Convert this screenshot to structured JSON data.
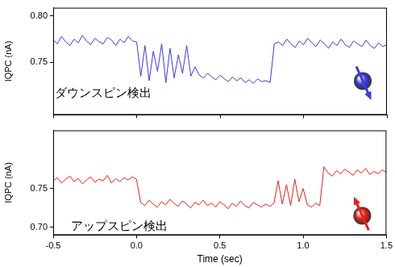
{
  "chart_data": [
    {
      "type": "line",
      "annotation": "ダウンスピン検出",
      "y_label": "IQPC (nA)",
      "color": "#3a3ae0",
      "tick_labels": "y",
      "grid": false,
      "xlim": [
        -0.5,
        1.5
      ],
      "xticks": [
        -0.5,
        {
          "value": 0,
          "label": "0.0"
        },
        0.5,
        {
          "value": 1,
          "label": "1.0"
        },
        1.5
      ],
      "ylim": [
        0.693,
        0.809
      ],
      "yticks": [
        0.75,
        {
          "value": 0.8,
          "label": "0.80"
        }
      ],
      "x": [
        -0.5,
        -0.475,
        -0.45,
        -0.425,
        -0.4,
        -0.375,
        -0.35,
        -0.325,
        -0.3,
        -0.275,
        -0.25,
        -0.225,
        -0.2,
        -0.175,
        -0.15,
        -0.125,
        -0.1,
        -0.075,
        -0.05,
        -0.025,
        0,
        0.025,
        0.05,
        0.075,
        0.1,
        0.125,
        0.15,
        0.175,
        0.2,
        0.225,
        0.25,
        0.275,
        0.3,
        0.325,
        0.35,
        0.375,
        0.4,
        0.425,
        0.45,
        0.475,
        0.5,
        0.525,
        0.55,
        0.575,
        0.6,
        0.625,
        0.65,
        0.675,
        0.7,
        0.725,
        0.75,
        0.775,
        0.8,
        0.825,
        0.85,
        0.875,
        0.9,
        0.925,
        0.95,
        0.975,
        1,
        1.025,
        1.05,
        1.075,
        1.1,
        1.125,
        1.15,
        1.175,
        1.2,
        1.225,
        1.25,
        1.275,
        1.3,
        1.325,
        1.35,
        1.375,
        1.4,
        1.425,
        1.45,
        1.475,
        1.5
      ],
      "values": [
        0.774,
        0.77,
        0.778,
        0.772,
        0.768,
        0.775,
        0.771,
        0.779,
        0.773,
        0.769,
        0.776,
        0.772,
        0.77,
        0.777,
        0.774,
        0.768,
        0.775,
        0.771,
        0.778,
        0.773,
        0.772,
        0.735,
        0.768,
        0.73,
        0.762,
        0.74,
        0.77,
        0.728,
        0.765,
        0.733,
        0.758,
        0.738,
        0.768,
        0.735,
        0.745,
        0.736,
        0.733,
        0.738,
        0.734,
        0.731,
        0.736,
        0.732,
        0.729,
        0.734,
        0.73,
        0.733,
        0.728,
        0.731,
        0.727,
        0.732,
        0.729,
        0.73,
        0.728,
        0.77,
        0.772,
        0.768,
        0.775,
        0.77,
        0.766,
        0.773,
        0.769,
        0.776,
        0.771,
        0.767,
        0.774,
        0.77,
        0.765,
        0.772,
        0.768,
        0.775,
        0.769,
        0.766,
        0.773,
        0.77,
        0.767,
        0.774,
        0.768,
        0.765,
        0.771,
        0.767,
        0.769
      ]
    },
    {
      "type": "line",
      "annotation": "アップスピン検出",
      "y_label": "IQPC (nA)",
      "x_label": "Time (sec)",
      "color": "#e8201a",
      "grid": false,
      "xlim": [
        -0.5,
        1.5
      ],
      "xticks": [
        -0.5,
        {
          "value": 0,
          "label": "0.0"
        },
        0.5,
        {
          "value": 1,
          "label": "1.0"
        },
        1.5
      ],
      "ylim": [
        0.69,
        0.825
      ],
      "yticks": [
        {
          "value": 0.7,
          "label": "0.70"
        },
        0.75
      ],
      "x": [
        -0.5,
        -0.475,
        -0.45,
        -0.425,
        -0.4,
        -0.375,
        -0.35,
        -0.325,
        -0.3,
        -0.275,
        -0.25,
        -0.225,
        -0.2,
        -0.175,
        -0.15,
        -0.125,
        -0.1,
        -0.075,
        -0.05,
        -0.025,
        0,
        0.025,
        0.05,
        0.075,
        0.1,
        0.125,
        0.15,
        0.175,
        0.2,
        0.225,
        0.25,
        0.275,
        0.3,
        0.325,
        0.35,
        0.375,
        0.4,
        0.425,
        0.45,
        0.475,
        0.5,
        0.525,
        0.55,
        0.575,
        0.6,
        0.625,
        0.65,
        0.675,
        0.7,
        0.725,
        0.75,
        0.775,
        0.8,
        0.825,
        0.85,
        0.875,
        0.9,
        0.925,
        0.95,
        0.975,
        1,
        1.025,
        1.05,
        1.075,
        1.1,
        1.125,
        1.15,
        1.175,
        1.2,
        1.225,
        1.25,
        1.275,
        1.3,
        1.325,
        1.35,
        1.375,
        1.4,
        1.425,
        1.45,
        1.475,
        1.5
      ],
      "values": [
        0.76,
        0.764,
        0.757,
        0.762,
        0.766,
        0.759,
        0.763,
        0.756,
        0.761,
        0.765,
        0.758,
        0.762,
        0.76,
        0.767,
        0.757,
        0.763,
        0.759,
        0.764,
        0.761,
        0.765,
        0.762,
        0.732,
        0.728,
        0.735,
        0.73,
        0.726,
        0.733,
        0.729,
        0.736,
        0.731,
        0.727,
        0.734,
        0.73,
        0.725,
        0.732,
        0.729,
        0.735,
        0.728,
        0.731,
        0.726,
        0.733,
        0.729,
        0.724,
        0.731,
        0.727,
        0.734,
        0.728,
        0.725,
        0.732,
        0.729,
        0.726,
        0.73,
        0.727,
        0.731,
        0.76,
        0.73,
        0.755,
        0.728,
        0.762,
        0.733,
        0.75,
        0.729,
        0.726,
        0.731,
        0.728,
        0.778,
        0.77,
        0.766,
        0.773,
        0.769,
        0.775,
        0.771,
        0.767,
        0.774,
        0.77,
        0.776,
        0.768,
        0.772,
        0.769,
        0.774,
        0.771
      ]
    }
  ]
}
